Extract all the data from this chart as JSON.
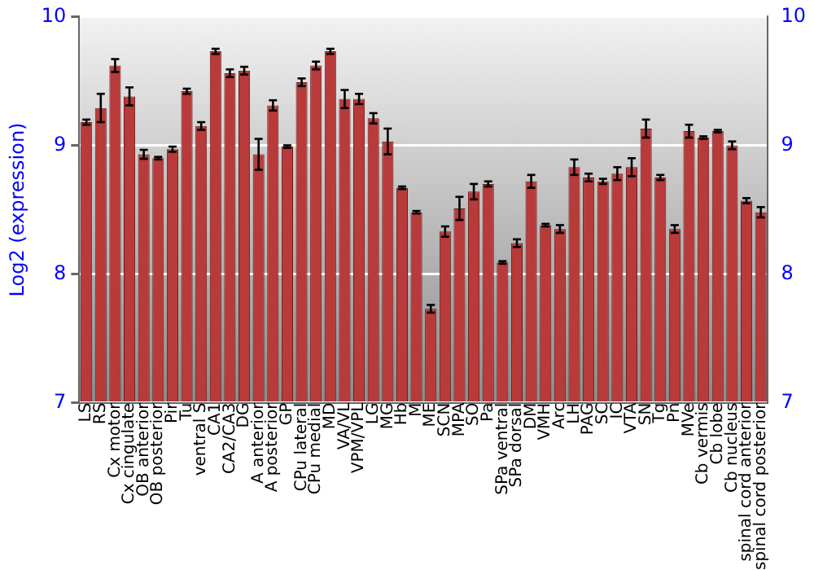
{
  "chart_data": {
    "type": "bar",
    "ylabel": "Log2 (expression)",
    "categories": [
      "LS",
      "RS",
      "Cx motor",
      "Cx cingulate",
      "OB anterior",
      "OB posterior",
      "Pir",
      "Tu",
      "ventral S",
      "CA1",
      "CA2/CA3",
      "DG",
      "A anterior",
      "A posterior",
      "GP",
      "CPu lateral",
      "CPu medial",
      "MD",
      "VA/VL",
      "VPM/VPL",
      "LG",
      "MG",
      "Hb",
      "M",
      "ME",
      "SCN",
      "MPA",
      "SO",
      "Pa",
      "SPa ventral",
      "SPa dorsal",
      "DM",
      "VMH",
      "Arc",
      "LH",
      "PAG",
      "SC",
      "IC",
      "VTA",
      "SN",
      "Tg",
      "Pn",
      "MVe",
      "Cb vermis",
      "Cb lobe",
      "Cb nucleus",
      "spinal cord anterior",
      "spinal cord posterior"
    ],
    "series": [
      {
        "color": "#b83a3a",
        "values": [
          9.18,
          9.29,
          9.62,
          9.38,
          8.93,
          8.9,
          8.97,
          9.42,
          9.15,
          9.73,
          9.56,
          9.58,
          8.93,
          9.31,
          8.99,
          9.49,
          9.62,
          9.73,
          9.36,
          9.36,
          9.21,
          9.03,
          8.67,
          8.48,
          7.73,
          8.33,
          8.51,
          8.64,
          8.7,
          8.09,
          8.24,
          8.72,
          8.38,
          8.35,
          8.83,
          8.75,
          8.72,
          8.78,
          8.83,
          9.13,
          8.75,
          8.35,
          9.11,
          9.06,
          9.11,
          9.0,
          8.57,
          8.48
        ],
        "errors": [
          0.02,
          0.11,
          0.05,
          0.07,
          0.035,
          0.01,
          0.02,
          0.02,
          0.03,
          0.02,
          0.03,
          0.03,
          0.12,
          0.04,
          0.01,
          0.03,
          0.03,
          0.02,
          0.07,
          0.04,
          0.04,
          0.1,
          0.01,
          0.01,
          0.03,
          0.04,
          0.09,
          0.06,
          0.02,
          0.01,
          0.03,
          0.05,
          0.01,
          0.03,
          0.06,
          0.03,
          0.02,
          0.05,
          0.07,
          0.07,
          0.02,
          0.03,
          0.05,
          0.01,
          0.01,
          0.03,
          0.02,
          0.04
        ]
      }
    ],
    "ylim": [
      7,
      10
    ],
    "yticks": [
      7,
      8,
      9,
      10
    ],
    "y2lim": [
      7,
      10
    ],
    "y2ticks": [
      7,
      8,
      9,
      10
    ],
    "grid": "y",
    "legend": false
  }
}
